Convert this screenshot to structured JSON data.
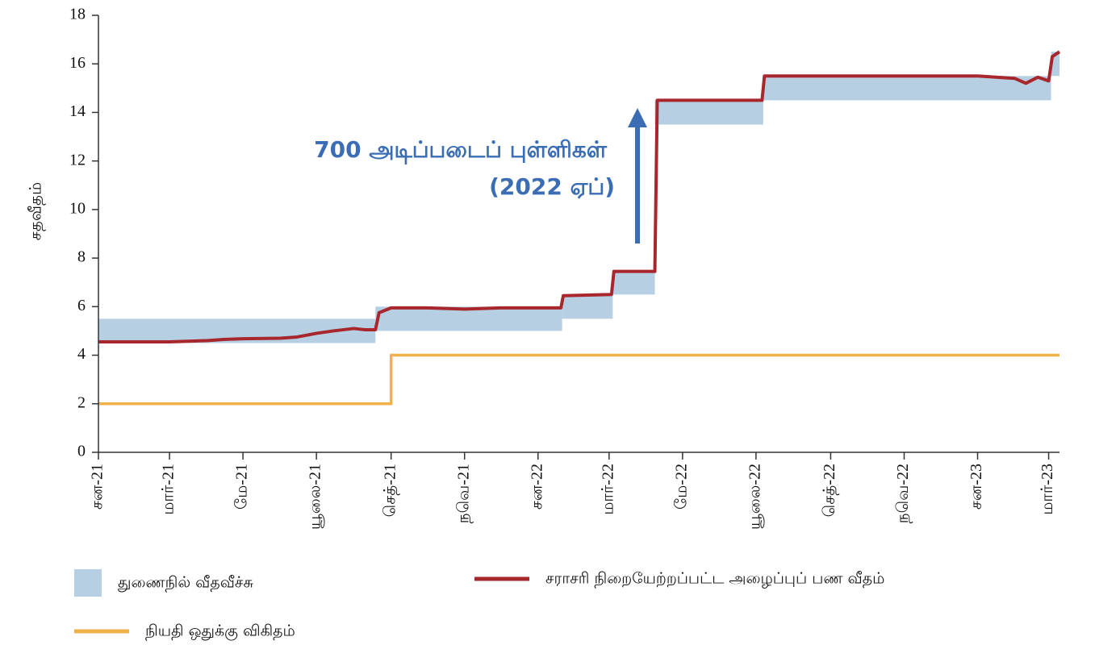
{
  "chart_data": {
    "type": "line",
    "y_label": "சதவீதம்",
    "annotation": [
      "700 அடிப்படைப் புள்ளிகள்",
      "(2022 ஏப்)"
    ],
    "xlim": [
      "2021-01-01",
      "2023-03-10"
    ],
    "xticks": [
      {
        "value": "2021-01-01",
        "label": "சன-21"
      },
      {
        "value": "2021-03-01",
        "label": "மார்-21"
      },
      {
        "value": "2021-05-01",
        "label": "மே-21"
      },
      {
        "value": "2021-07-01",
        "label": "யூலை-21"
      },
      {
        "value": "2021-09-01",
        "label": "செத்-21"
      },
      {
        "value": "2021-11-01",
        "label": "நவெ-21"
      },
      {
        "value": "2022-01-01",
        "label": "சன-22"
      },
      {
        "value": "2022-03-01",
        "label": "மார்-22"
      },
      {
        "value": "2022-05-01",
        "label": "மே-22"
      },
      {
        "value": "2022-07-01",
        "label": "யூலை-22"
      },
      {
        "value": "2022-09-01",
        "label": "செத்-22"
      },
      {
        "value": "2022-11-01",
        "label": "நவெ-22"
      },
      {
        "value": "2023-01-01",
        "label": "சன-23"
      },
      {
        "value": "2023-03-01",
        "label": "மார்-23"
      }
    ],
    "ylim": [
      0,
      18
    ],
    "yticks": [
      0,
      2,
      4,
      6,
      8,
      10,
      12,
      14,
      16,
      18
    ],
    "band": {
      "name": "துணைநில் வீதவீச்சு",
      "color": "#b7cfe2",
      "segments": [
        {
          "start": "2021-01-01",
          "end": "2021-08-19",
          "lower": 4.5,
          "upper": 5.5
        },
        {
          "start": "2021-08-19",
          "end": "2022-01-21",
          "lower": 5.0,
          "upper": 6.0
        },
        {
          "start": "2022-01-21",
          "end": "2022-03-04",
          "lower": 5.5,
          "upper": 6.5
        },
        {
          "start": "2022-03-04",
          "end": "2022-04-08",
          "lower": 6.5,
          "upper": 7.5
        },
        {
          "start": "2022-04-08",
          "end": "2022-07-07",
          "lower": 13.5,
          "upper": 14.5
        },
        {
          "start": "2022-07-07",
          "end": "2023-03-03",
          "lower": 14.5,
          "upper": 15.5
        },
        {
          "start": "2023-03-03",
          "end": "2023-03-10",
          "lower": 15.5,
          "upper": 16.5
        }
      ]
    },
    "series": [
      {
        "name": "சராசரி நிறையேற்றப்பட்ட அழைப்புப் பண வீதம்",
        "color": "#a8272d",
        "x": [
          "2021-01-01",
          "2021-02-15",
          "2021-03-01",
          "2021-04-01",
          "2021-04-15",
          "2021-05-01",
          "2021-06-01",
          "2021-06-15",
          "2021-07-01",
          "2021-07-15",
          "2021-08-01",
          "2021-08-10",
          "2021-08-19",
          "2021-08-22",
          "2021-09-01",
          "2021-10-01",
          "2021-11-01",
          "2021-12-01",
          "2022-01-20",
          "2022-01-22",
          "2022-03-03",
          "2022-03-05",
          "2022-04-08",
          "2022-04-10",
          "2022-07-06",
          "2022-07-08",
          "2022-09-01",
          "2023-01-01",
          "2023-02-01",
          "2023-02-10",
          "2023-02-20",
          "2023-03-01",
          "2023-03-04",
          "2023-03-10"
        ],
        "values": [
          4.55,
          4.55,
          4.55,
          4.6,
          4.65,
          4.68,
          4.7,
          4.75,
          4.9,
          5.0,
          5.1,
          5.05,
          5.05,
          5.75,
          5.95,
          5.95,
          5.9,
          5.95,
          5.95,
          6.45,
          6.5,
          7.45,
          7.45,
          14.5,
          14.5,
          15.5,
          15.5,
          15.5,
          15.4,
          15.2,
          15.45,
          15.3,
          16.3,
          16.5
        ]
      },
      {
        "name": "நியதி ஒதுக்கு விகிதம்",
        "color": "#f1b14a",
        "x": [
          "2021-01-01",
          "2021-09-01",
          "2021-09-01",
          "2023-03-10"
        ],
        "values": [
          2,
          2,
          4,
          4
        ]
      }
    ]
  }
}
